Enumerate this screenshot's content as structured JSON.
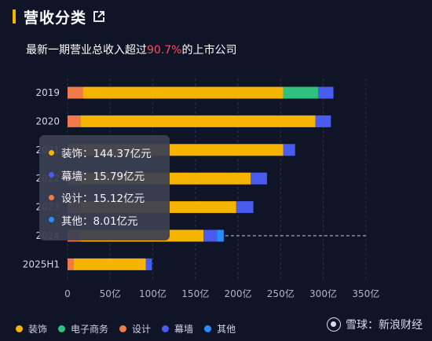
{
  "header": {
    "title": "营收分类",
    "subtitle_prefix": "最新一期营业总收入超过",
    "subtitle_highlight": "90.7%",
    "subtitle_suffix": "的上市公司",
    "accent_color": "#f5b400",
    "highlight_color": "#ff4d5e"
  },
  "tooltip": {
    "items": [
      {
        "label": "装饰：144.37亿元",
        "color": "#f5b400"
      },
      {
        "label": "幕墙：15.79亿元",
        "color": "#4a5cf0"
      },
      {
        "label": "设计：15.12亿元",
        "color": "#f07a4a"
      },
      {
        "label": "其他：8.01亿元",
        "color": "#2a8cff"
      }
    ]
  },
  "watermark": {
    "text": "雪球：新浪财经",
    "icon": "snowball-logo-icon"
  },
  "chart_data": {
    "type": "bar",
    "orientation": "horizontal",
    "stacked": true,
    "categories": [
      "2019",
      "2020",
      "2021",
      "2022",
      "2023",
      "2024",
      "2025H1"
    ],
    "x_unit": "亿",
    "xlim": [
      0,
      350
    ],
    "x_ticks": [
      0,
      50,
      100,
      150,
      200,
      250,
      300,
      350
    ],
    "x_tick_labels": [
      "0",
      "50亿",
      "100亿",
      "150亿",
      "200亿",
      "250亿",
      "300亿",
      "350亿"
    ],
    "legend_position": "bottom-left",
    "grid": true,
    "reference_line_category": "2024",
    "series": [
      {
        "name": "装饰",
        "color": "#f5b400",
        "values": [
          235,
          276,
          238,
          200,
          183,
          144.37,
          85
        ]
      },
      {
        "name": "电子商务",
        "color": "#2ec27e",
        "values": [
          41,
          0,
          0,
          0,
          0,
          0,
          0
        ]
      },
      {
        "name": "设计",
        "color": "#f07a4a",
        "values": [
          18,
          15,
          15,
          15,
          15,
          15.12,
          7
        ]
      },
      {
        "name": "幕墙",
        "color": "#4a5cf0",
        "values": [
          18,
          18,
          14,
          19,
          20,
          15.79,
          7
        ]
      },
      {
        "name": "其他",
        "color": "#2a8cff",
        "values": [
          0,
          0,
          0,
          0,
          0,
          8.01,
          0
        ]
      }
    ]
  }
}
